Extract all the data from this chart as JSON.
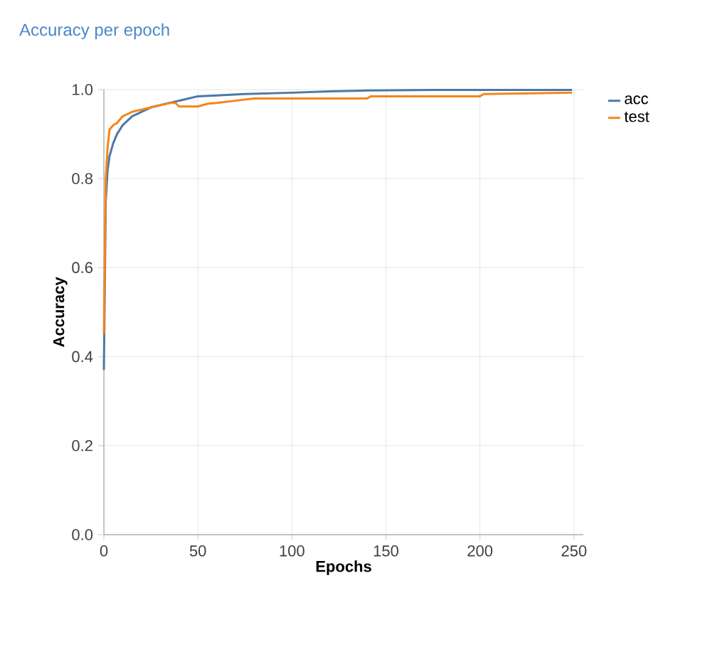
{
  "chart_data": {
    "type": "line",
    "title": "Accuracy per epoch",
    "xlabel": "Epochs",
    "ylabel": "Accuracy",
    "series": [
      {
        "name": "acc",
        "color": "#4c78a8",
        "x": [
          0,
          1,
          2,
          3,
          5,
          7,
          10,
          15,
          20,
          25,
          30,
          35,
          40,
          50,
          60,
          75,
          100,
          120,
          140,
          175,
          200,
          249
        ],
        "values": [
          0.37,
          0.75,
          0.82,
          0.85,
          0.88,
          0.9,
          0.92,
          0.94,
          0.95,
          0.96,
          null,
          0.97,
          0.975,
          0.985,
          0.987,
          0.99,
          0.993,
          0.996,
          0.998,
          0.999,
          0.999,
          0.999
        ]
      },
      {
        "name": "test",
        "color": "#f58518",
        "x": [
          0,
          1,
          2,
          3,
          5,
          7,
          10,
          15,
          20,
          25,
          30,
          35,
          38,
          40,
          50,
          55,
          60,
          70,
          80,
          100,
          140,
          142,
          200,
          202,
          249
        ],
        "values": [
          0.45,
          0.8,
          0.87,
          0.91,
          0.92,
          0.925,
          0.94,
          0.95,
          0.955,
          0.96,
          0.965,
          0.97,
          0.97,
          0.962,
          0.962,
          0.968,
          0.97,
          0.975,
          0.98,
          0.98,
          0.98,
          0.985,
          0.985,
          0.99,
          0.993
        ]
      }
    ],
    "xlim": [
      0,
      255
    ],
    "ylim": [
      0,
      1.0
    ],
    "xticks": [
      0,
      50,
      100,
      150,
      200,
      250
    ],
    "yticks": [
      {
        "value": 0,
        "label": "0.0"
      },
      {
        "value": 0.2,
        "label": "0.2"
      },
      {
        "value": 0.4,
        "label": "0.4"
      },
      {
        "value": 0.6,
        "label": "0.6"
      },
      {
        "value": 0.8,
        "label": "0.8"
      },
      {
        "value": 1.0,
        "label": "1.0"
      }
    ],
    "grid": true,
    "legend": "top right",
    "marker": "none",
    "line_style": "solid"
  }
}
